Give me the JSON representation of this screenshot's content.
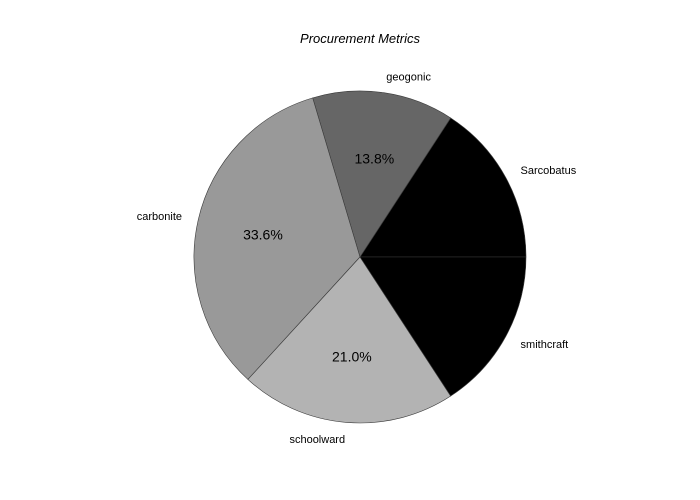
{
  "chart_data": {
    "type": "pie",
    "title": "Procurement Metrics",
    "start_angle_deg": 0,
    "direction": "counterclockwise",
    "slices": [
      {
        "label": "Sarcobatus",
        "value": 15.8,
        "pct_label": "",
        "color": "#000000",
        "pct_color": "#ffffff"
      },
      {
        "label": "geogonic",
        "value": 13.8,
        "pct_label": "13.8%",
        "color": "#666666",
        "pct_color": "#000000"
      },
      {
        "label": "carbonite",
        "value": 33.6,
        "pct_label": "33.6%",
        "color": "#999999",
        "pct_color": "#000000"
      },
      {
        "label": "schoolward",
        "value": 21.0,
        "pct_label": "21.0%",
        "color": "#b3b3b3",
        "pct_color": "#000000"
      },
      {
        "label": "smithcraft",
        "value": 15.8,
        "pct_label": "",
        "color": "#000000",
        "pct_color": "#ffffff"
      }
    ]
  }
}
